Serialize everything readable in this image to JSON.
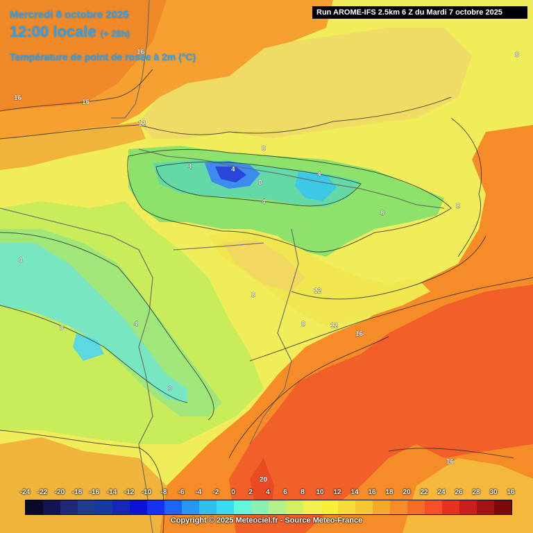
{
  "header": {
    "date": "Mercredi 8 octobre 2025",
    "time": "12:00 locale",
    "lead": "(+ 28h)",
    "parameter": "Température de point de rosée à 2m (°C)"
  },
  "run_info": "Run AROME-IFS 2.5km 6 Z du Mardi 7 octobre 2025",
  "contour_labels": [
    "16",
    "16",
    "16",
    "12",
    "8",
    "8",
    "8",
    "8",
    "8",
    "8",
    "4",
    "4",
    "4",
    "4",
    "4",
    "0",
    "0",
    "0",
    "0",
    "12",
    "12",
    "16",
    "16",
    "20"
  ],
  "legend": {
    "ticks": [
      "-24",
      "-22",
      "-20",
      "-18",
      "-16",
      "-14",
      "-12",
      "-10",
      "-8",
      "-6",
      "-4",
      "-2",
      "0",
      "2",
      "4",
      "6",
      "8",
      "10",
      "12",
      "14",
      "16",
      "18",
      "20",
      "22",
      "24",
      "26",
      "28",
      "30",
      "16"
    ],
    "colors": [
      "#0a0a2a",
      "#141450",
      "#1e2a78",
      "#1e3c8c",
      "#143c9c",
      "#1428b4",
      "#0a14d2",
      "#1432f0",
      "#1e64f5",
      "#2896f5",
      "#32beeb",
      "#3cdcf0",
      "#64f5dc",
      "#8cf0b4",
      "#b4f08c",
      "#d2f064",
      "#f0f050",
      "#f5f03c",
      "#f5dc3c",
      "#f5c832",
      "#f5aa28",
      "#f58c28",
      "#f56e28",
      "#f55028",
      "#e63220",
      "#c81e1e",
      "#a01414",
      "#780a0a"
    ]
  },
  "copyright": "Copyright © 2025 Meteociel.fr - Source Meteo-France"
}
